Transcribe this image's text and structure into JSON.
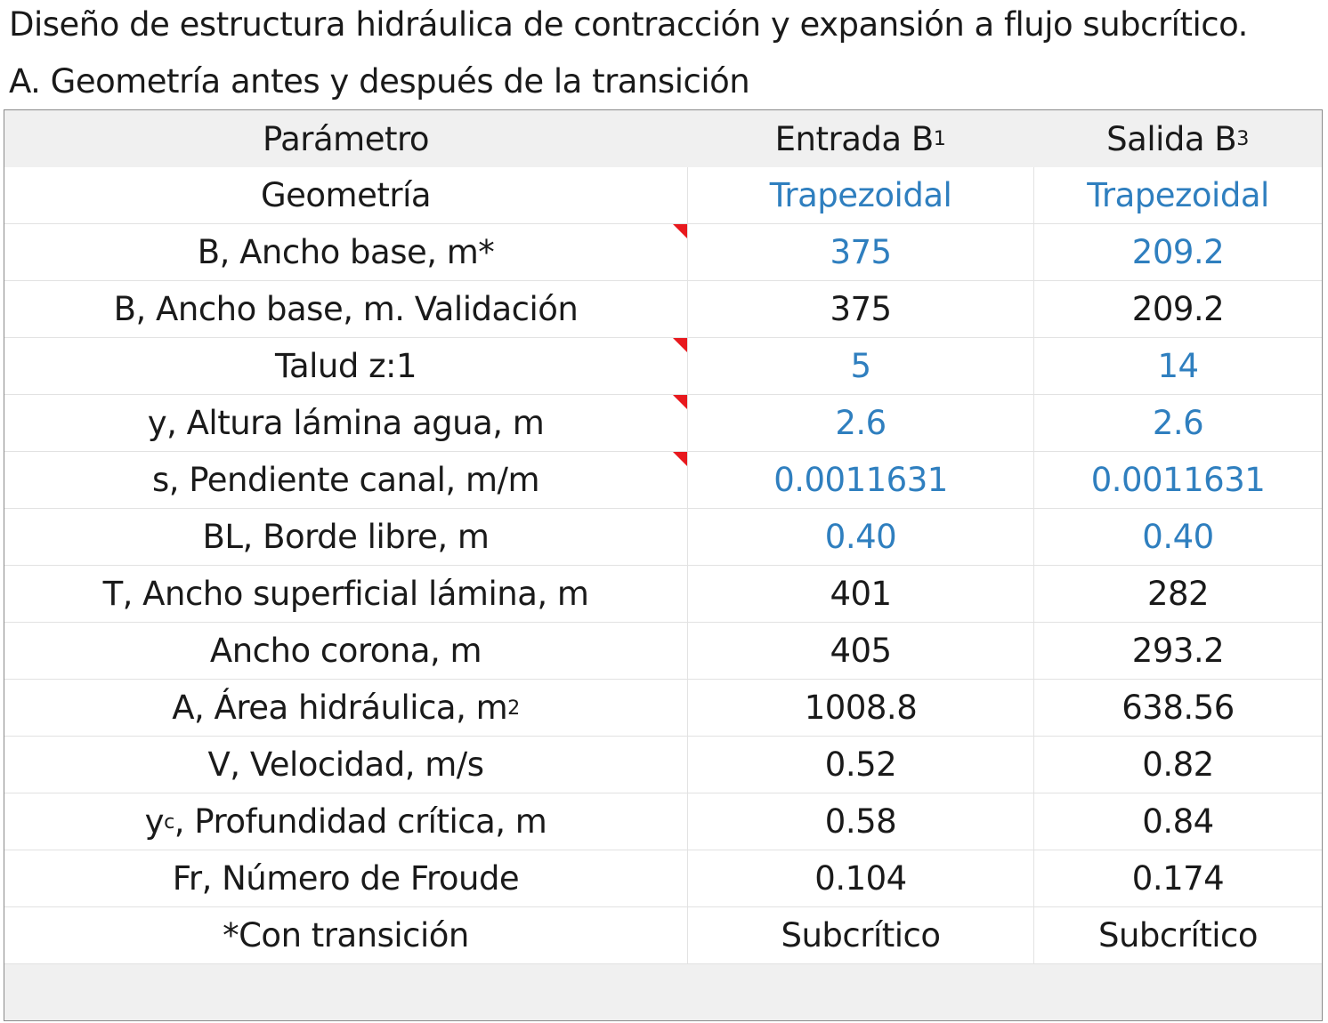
{
  "title": "Diseño de estructura hidráulica de contracción y expansión a flujo subcrítico.",
  "subtitle": "A. Geometría antes y después de la transición",
  "colors": {
    "input_blue": "#2f7fbf",
    "comment_flag": "#e8191e",
    "header_bg": "#f0f0f0"
  },
  "table": {
    "headers": {
      "param": "Parámetro",
      "in_main": "Entrada B",
      "in_sub": "1",
      "out_main": "Salida B",
      "out_sub": "3"
    },
    "rows": [
      {
        "param": "Geometría",
        "in": "Trapezoidal",
        "out": "Trapezoidal"
      },
      {
        "param": "B, Ancho base, m*",
        "in": "375",
        "out": "209.2"
      },
      {
        "param": "B, Ancho base, m. Validación",
        "in": "375",
        "out": "209.2"
      },
      {
        "param": "Talud z:1",
        "in": "5",
        "out": "14"
      },
      {
        "param": "y, Altura lámina agua, m",
        "in": "2.6",
        "out": "2.6"
      },
      {
        "param": "s, Pendiente canal, m/m",
        "in": "0.0011631",
        "out": "0.0011631"
      },
      {
        "param": "BL, Borde libre, m",
        "in": "0.40",
        "out": "0.40"
      },
      {
        "param": "T, Ancho superficial lámina, m",
        "in": "401",
        "out": "282"
      },
      {
        "param": "Ancho corona, m",
        "in": "405",
        "out": "293.2"
      },
      {
        "param_main": "A, Área hidráulica, m",
        "param_sup": "2",
        "in": "1008.8",
        "out": "638.56"
      },
      {
        "param": "V, Velocidad, m/s",
        "in": "0.52",
        "out": "0.82"
      },
      {
        "param_main": "y",
        "param_sub": "c",
        "param_rest": ", Profundidad crítica, m",
        "in": "0.58",
        "out": "0.84"
      },
      {
        "param": "Fr, Número de Froude",
        "in": "0.104",
        "out": "0.174"
      },
      {
        "param": "*Con transición",
        "in": "Subcrítico",
        "out": "Subcrítico"
      }
    ]
  }
}
